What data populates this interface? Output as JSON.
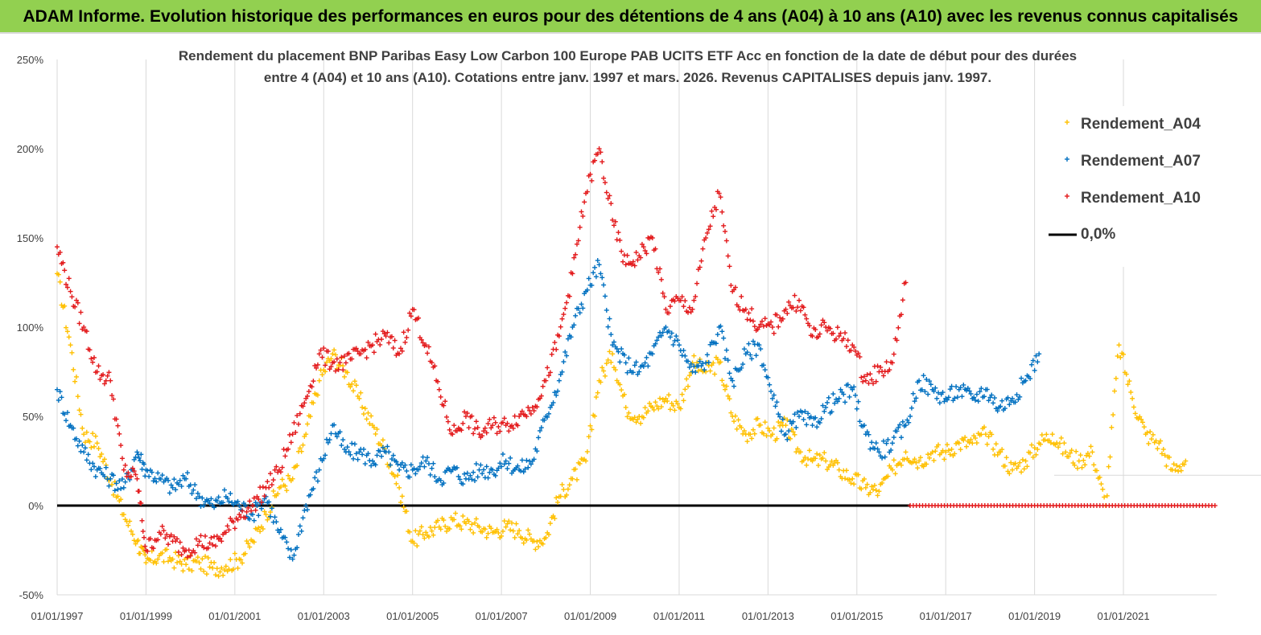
{
  "banner": {
    "text": "ADAM Informe. Evolution historique des performances en euros pour des détentions de 4 ans (A04) à 10 ans (A10) avec les revenus connus capitalisés",
    "color": "#92d050"
  },
  "chart_data": {
    "type": "scatter",
    "title_line1": "Rendement du placement BNP Paribas Easy Low Carbon 100 Europe PAB UCITS ETF Acc en fonction de la date de début pour des durées",
    "title_line2": "entre 4 (A04) et 10 ans (A10). Cotations entre janv. 1997 et mars. 2026. Revenus CAPITALISES depuis janv. 1997.",
    "ylim": [
      -50,
      250
    ],
    "y_ticks": [
      "-50%",
      "0%",
      "50%",
      "100%",
      "150%",
      "200%",
      "250%"
    ],
    "y_tick_values": [
      -50,
      0,
      50,
      100,
      150,
      200,
      250
    ],
    "x_ticks": [
      "01/01/1997",
      "01/01/1999",
      "01/01/2001",
      "01/01/2003",
      "01/01/2005",
      "01/01/2007",
      "01/01/2009",
      "01/01/2011",
      "01/01/2013",
      "01/01/2015",
      "01/01/2017",
      "01/01/2019",
      "01/01/2021"
    ],
    "x_tick_values": [
      1997,
      1999,
      2001,
      2003,
      2005,
      2007,
      2009,
      2011,
      2013,
      2015,
      2017,
      2019,
      2021
    ],
    "xlim": [
      1997,
      2023.1
    ],
    "grid": "vertical",
    "legend_position": "top-right",
    "series": [
      {
        "name": "Rendement_A04",
        "color": "#ffc000",
        "x": [
          1997.0,
          1997.3,
          1997.6,
          1997.9,
          1998.2,
          1998.5,
          1998.8,
          1999.0,
          1999.3,
          1999.6,
          1999.9,
          2000.2,
          2000.5,
          2000.8,
          2001.1,
          2001.4,
          2001.7,
          2002.0,
          2002.3,
          2002.6,
          2002.9,
          2003.2,
          2003.5,
          2003.8,
          2004.1,
          2004.4,
          2004.7,
          2005.0,
          2005.3,
          2005.6,
          2005.9,
          2006.2,
          2006.5,
          2006.8,
          2007.1,
          2007.4,
          2007.7,
          2008.0,
          2008.3,
          2008.6,
          2008.9,
          2009.2,
          2009.5,
          2009.8,
          2010.1,
          2010.4,
          2010.7,
          2011.0,
          2011.3,
          2011.6,
          2011.9,
          2012.2,
          2012.5,
          2012.8,
          2013.1,
          2013.4,
          2013.7,
          2014.0,
          2014.3,
          2014.6,
          2014.9,
          2015.2,
          2015.5,
          2015.8,
          2016.1,
          2016.4,
          2016.7,
          2017.0,
          2017.3,
          2017.6,
          2017.9,
          2018.2,
          2018.5,
          2018.8,
          2019.1,
          2019.4,
          2019.7,
          2020.0,
          2020.3,
          2020.6,
          2020.9,
          2021.2,
          2021.5,
          2021.8,
          2022.1,
          2022.4
        ],
        "y": [
          130,
          90,
          40,
          35,
          15,
          -5,
          -20,
          -32,
          -28,
          -30,
          -33,
          -32,
          -35,
          -34,
          -30,
          -20,
          -5,
          10,
          15,
          40,
          70,
          85,
          75,
          60,
          45,
          30,
          10,
          -20,
          -15,
          -12,
          -8,
          -10,
          -12,
          -15,
          -12,
          -14,
          -20,
          -18,
          5,
          15,
          25,
          70,
          85,
          55,
          50,
          55,
          60,
          55,
          80,
          75,
          80,
          50,
          40,
          45,
          40,
          45,
          30,
          25,
          25,
          20,
          15,
          10,
          8,
          20,
          30,
          25,
          30,
          30,
          35,
          35,
          40,
          30,
          20,
          25,
          35,
          40,
          30,
          25,
          30,
          0,
          90,
          60,
          40,
          35,
          20,
          25
        ]
      },
      {
        "name": "Rendement_A07",
        "color": "#0070c0",
        "x": [
          1997.0,
          1997.3,
          1997.6,
          1997.9,
          1998.2,
          1998.5,
          1998.8,
          1999.0,
          1999.3,
          1999.6,
          1999.9,
          2000.2,
          2000.5,
          2000.8,
          2001.1,
          2001.4,
          2001.7,
          2002.0,
          2002.3,
          2002.6,
          2002.9,
          2003.2,
          2003.5,
          2003.8,
          2004.1,
          2004.4,
          2004.7,
          2005.0,
          2005.3,
          2005.6,
          2005.9,
          2006.2,
          2006.5,
          2006.8,
          2007.1,
          2007.4,
          2007.7,
          2008.0,
          2008.3,
          2008.6,
          2008.9,
          2009.2,
          2009.5,
          2009.8,
          2010.1,
          2010.4,
          2010.7,
          2011.0,
          2011.3,
          2011.6,
          2011.9,
          2012.2,
          2012.5,
          2012.8,
          2013.1,
          2013.4,
          2013.7,
          2014.0,
          2014.3,
          2014.6,
          2014.9,
          2015.2,
          2015.5,
          2015.8,
          2016.1,
          2016.4,
          2016.7,
          2017.0,
          2017.3,
          2017.6,
          2017.9,
          2018.2,
          2018.5,
          2018.8,
          2019.1
        ],
        "y": [
          65,
          45,
          30,
          20,
          15,
          10,
          30,
          20,
          15,
          10,
          15,
          5,
          0,
          5,
          0,
          -5,
          5,
          -15,
          -30,
          0,
          20,
          45,
          30,
          30,
          25,
          30,
          20,
          20,
          25,
          15,
          20,
          15,
          20,
          20,
          25,
          20,
          25,
          50,
          70,
          100,
          120,
          135,
          90,
          80,
          75,
          85,
          100,
          90,
          75,
          80,
          100,
          70,
          85,
          90,
          60,
          40,
          50,
          45,
          55,
          60,
          65,
          40,
          30,
          35,
          45,
          70,
          65,
          60,
          65,
          60,
          65,
          55,
          60,
          70,
          85
        ]
      },
      {
        "name": "Rendement_A10",
        "color": "#e31a1c",
        "x": [
          1997.0,
          1997.3,
          1997.6,
          1997.9,
          1998.2,
          1998.5,
          1998.8,
          1999.0,
          1999.3,
          1999.6,
          1999.9,
          2000.2,
          2000.5,
          2000.8,
          2001.1,
          2001.4,
          2001.7,
          2002.0,
          2002.3,
          2002.6,
          2002.9,
          2003.2,
          2003.5,
          2003.8,
          2004.1,
          2004.4,
          2004.7,
          2005.0,
          2005.3,
          2005.6,
          2005.9,
          2006.2,
          2006.5,
          2006.8,
          2007.1,
          2007.4,
          2007.7,
          2008.0,
          2008.3,
          2008.6,
          2008.9,
          2009.2,
          2009.5,
          2009.8,
          2010.1,
          2010.4,
          2010.7,
          2011.0,
          2011.3,
          2011.6,
          2011.9,
          2012.2,
          2012.5,
          2012.8,
          2013.1,
          2013.4,
          2013.7,
          2014.0,
          2014.3,
          2014.6,
          2014.9,
          2015.2,
          2015.5,
          2015.8,
          2016.1
        ],
        "y": [
          145,
          120,
          100,
          75,
          70,
          20,
          15,
          -25,
          -15,
          -20,
          -25,
          -20,
          -22,
          -15,
          -5,
          0,
          10,
          20,
          40,
          60,
          85,
          80,
          80,
          85,
          90,
          95,
          85,
          110,
          90,
          65,
          40,
          50,
          40,
          45,
          45,
          50,
          55,
          70,
          95,
          130,
          175,
          200,
          160,
          135,
          140,
          150,
          110,
          115,
          110,
          150,
          175,
          120,
          110,
          100,
          100,
          110,
          115,
          95,
          100,
          95,
          90,
          70,
          75,
          80,
          125
        ]
      },
      {
        "name": "0,0%",
        "color": "#000000",
        "x": [
          1997.0,
          2023.1
        ],
        "y": [
          0,
          0
        ]
      }
    ],
    "zero_red_series": {
      "x_start": 2016.2,
      "x_end": 2023.1,
      "y": 0
    }
  }
}
